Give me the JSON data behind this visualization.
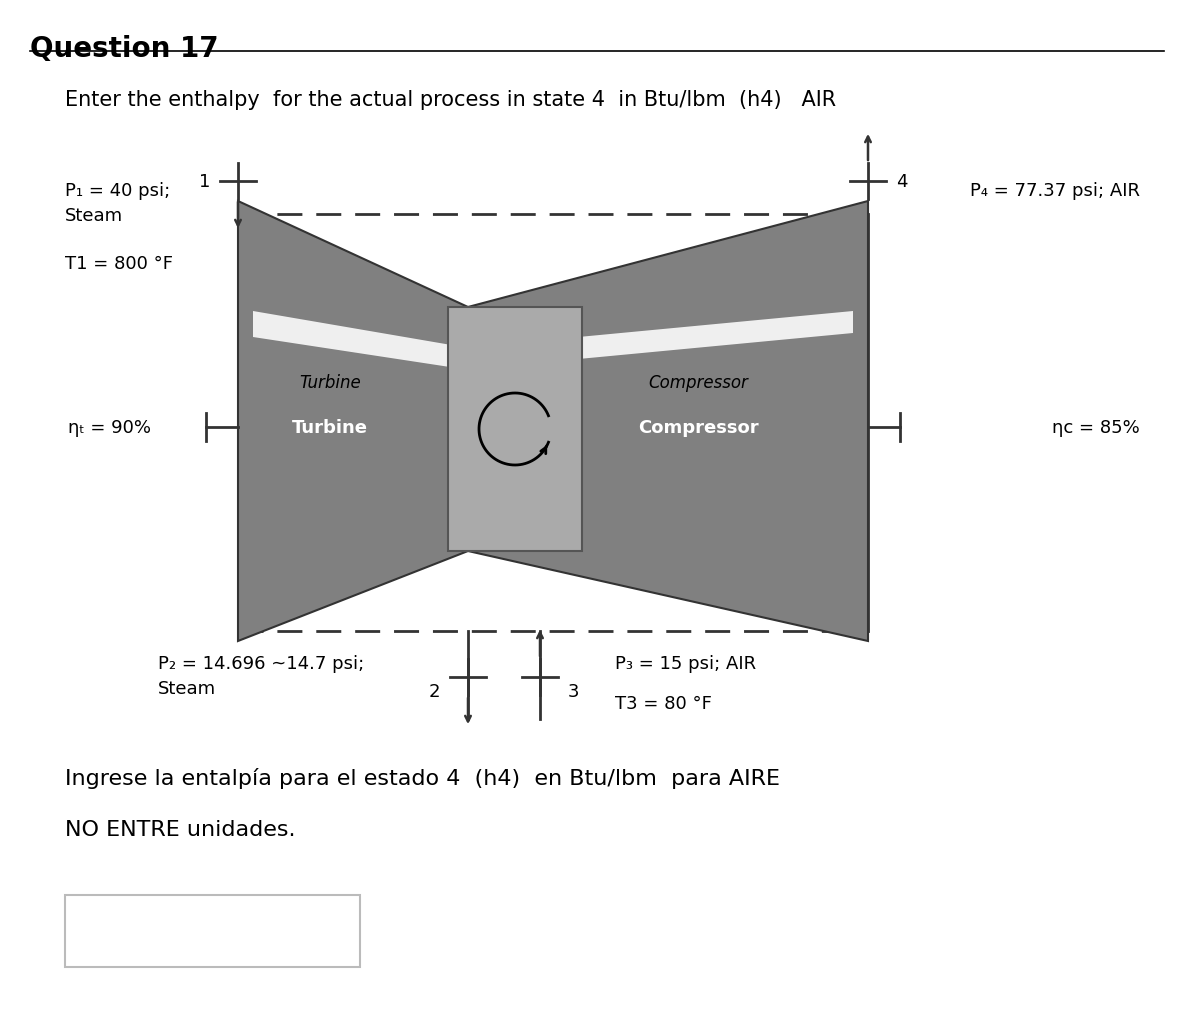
{
  "title": "Question 17",
  "question_text": "Enter the enthalpy  for the actual process in state 4  in Btu/lbm  (h4)   AIR",
  "spanish_text": "Ingrese la entalpía para el estado 4  (h4)  en Btu/lbm  para AIRE",
  "no_units_text": "NO ENTRE unidades.",
  "p1_label": "P₁ = 40 psi;",
  "steam_label": "Steam",
  "t1_label": "T1 = 800 °F",
  "p4_label": "P₄ = 77.37 psi; AIR",
  "eta_t_label": "ηₜ = 90%",
  "eta_c_label": "ηc = 85%",
  "p2_label": "P₂ = 14.696 ~14.7 psi;",
  "steam2_label": "Steam",
  "p3_label": "P₃ = 15 psi; AIR",
  "t3_label": "T3 = 80 °F",
  "turbine_italic": "Turbine",
  "turbine_bold": "Turbine",
  "compressor_italic": "Compressor",
  "compressor_bold": "Compressor",
  "bg_color": "#ffffff",
  "pipe_color": "#333333",
  "gray_fill": "#808080",
  "shaft_fill": "#aaaaaa",
  "shaft_edge": "#555555"
}
